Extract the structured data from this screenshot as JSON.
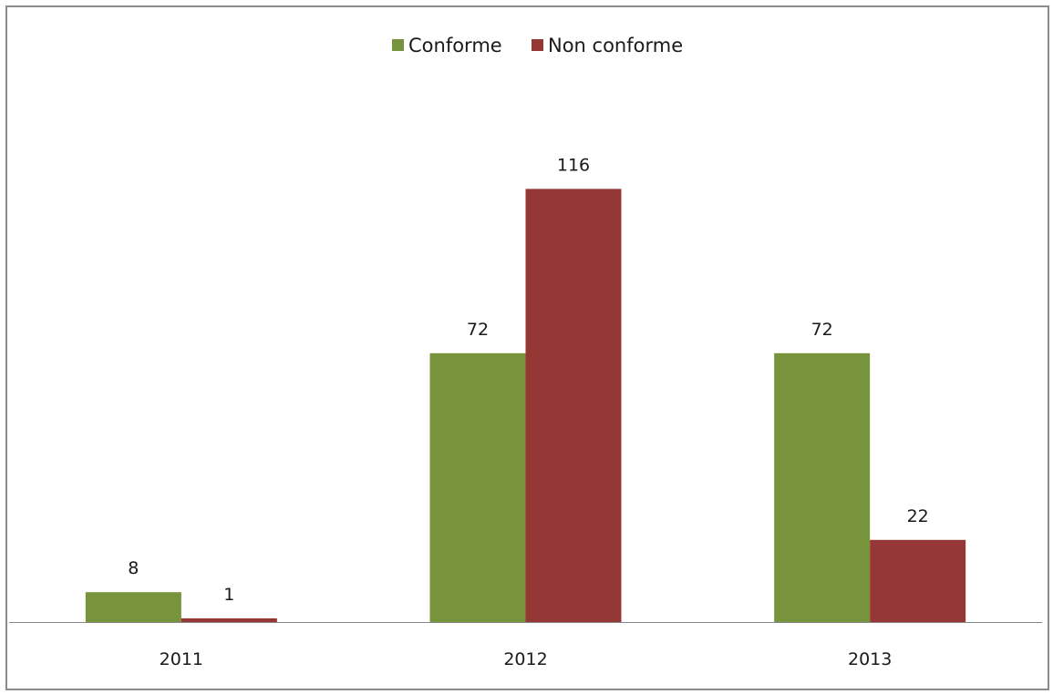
{
  "chart_data": {
    "type": "bar",
    "categories": [
      "2011",
      "2012",
      "2013"
    ],
    "series": [
      {
        "name": "Conforme",
        "values": [
          8,
          72,
          72
        ],
        "color": "#77933c"
      },
      {
        "name": "Non conforme",
        "values": [
          1,
          116,
          22
        ],
        "color": "#953735"
      }
    ],
    "title": "",
    "xlabel": "",
    "ylabel": "",
    "ylim": [
      0,
      125
    ],
    "grid": false,
    "legend_position": "top-center",
    "data_labels": true,
    "axis_color": "#868686"
  }
}
